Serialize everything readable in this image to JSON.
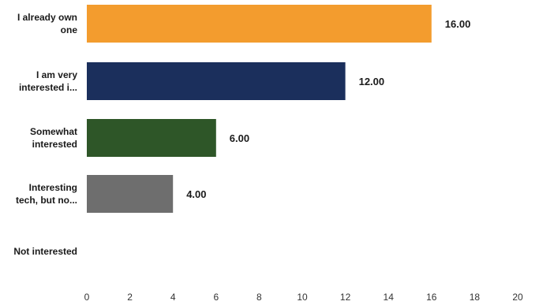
{
  "chart_data": {
    "type": "bar",
    "orientation": "horizontal",
    "title": "",
    "xlabel": "",
    "ylabel": "",
    "categories": [
      [
        "I already own",
        "one"
      ],
      [
        "I am very",
        "interested i..."
      ],
      [
        "Somewhat",
        "interested"
      ],
      [
        "Interesting",
        "tech, but no..."
      ],
      [
        "Not interested"
      ]
    ],
    "values": [
      16,
      12,
      6,
      4,
      0
    ],
    "value_labels": [
      "16.00",
      "12.00",
      "6.00",
      "4.00",
      ""
    ],
    "colors": [
      "#F39C2E",
      "#1B2F5C",
      "#2E5628",
      "#6E6E6E",
      "#999999"
    ],
    "xlim": [
      0,
      20
    ],
    "xticks": [
      "0",
      "2",
      "4",
      "6",
      "8",
      "10",
      "12",
      "14",
      "16",
      "18",
      "20"
    ],
    "grid": false,
    "legend": "none"
  }
}
